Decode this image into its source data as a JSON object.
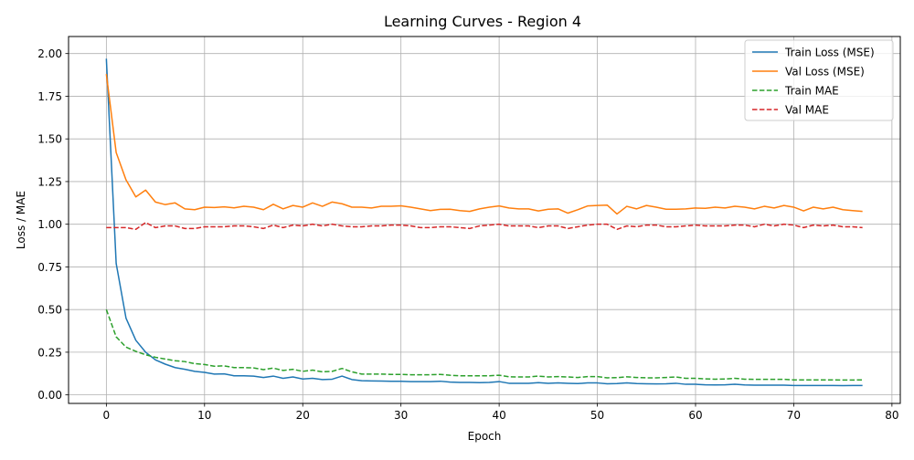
{
  "chart_data": {
    "type": "line",
    "title": "Learning Curves - Region 4",
    "xlabel": "Epoch",
    "ylabel": "Loss / MAE",
    "xlim": [
      -3.85,
      80.85
    ],
    "ylim": [
      -0.05,
      2.1
    ],
    "xticks": [
      0,
      10,
      20,
      30,
      40,
      50,
      60,
      70,
      80
    ],
    "yticks": [
      0.0,
      0.25,
      0.5,
      0.75,
      1.0,
      1.25,
      1.5,
      1.75,
      2.0
    ],
    "xtick_labels": [
      "0",
      "10",
      "20",
      "30",
      "40",
      "50",
      "60",
      "70",
      "80"
    ],
    "ytick_labels": [
      "0.00",
      "0.25",
      "0.50",
      "0.75",
      "1.00",
      "1.25",
      "1.50",
      "1.75",
      "2.00"
    ],
    "grid": true,
    "legend_position": "top-right",
    "x": [
      0,
      1,
      2,
      3,
      4,
      5,
      6,
      7,
      8,
      9,
      10,
      11,
      12,
      13,
      14,
      15,
      16,
      17,
      18,
      19,
      20,
      21,
      22,
      23,
      24,
      25,
      26,
      27,
      28,
      29,
      30,
      31,
      32,
      33,
      34,
      35,
      36,
      37,
      38,
      39,
      40,
      41,
      42,
      43,
      44,
      45,
      46,
      47,
      48,
      49,
      50,
      51,
      52,
      53,
      54,
      55,
      56,
      57,
      58,
      59,
      60,
      61,
      62,
      63,
      64,
      65,
      66,
      67,
      68,
      69,
      70,
      71,
      72,
      73,
      74,
      75,
      76,
      77
    ],
    "series": [
      {
        "name": "Train Loss (MSE)",
        "color": "#1f77b4",
        "dash": "solid",
        "values": [
          1.97,
          0.77,
          0.45,
          0.32,
          0.25,
          0.205,
          0.18,
          0.16,
          0.15,
          0.138,
          0.132,
          0.122,
          0.123,
          0.112,
          0.112,
          0.11,
          0.102,
          0.11,
          0.097,
          0.105,
          0.093,
          0.097,
          0.09,
          0.092,
          0.11,
          0.09,
          0.083,
          0.082,
          0.081,
          0.08,
          0.08,
          0.078,
          0.078,
          0.078,
          0.08,
          0.075,
          0.073,
          0.073,
          0.072,
          0.073,
          0.078,
          0.068,
          0.068,
          0.068,
          0.072,
          0.068,
          0.07,
          0.068,
          0.066,
          0.07,
          0.07,
          0.065,
          0.066,
          0.07,
          0.066,
          0.065,
          0.064,
          0.065,
          0.068,
          0.062,
          0.062,
          0.059,
          0.058,
          0.059,
          0.062,
          0.058,
          0.057,
          0.057,
          0.057,
          0.057,
          0.055,
          0.055,
          0.055,
          0.055,
          0.055,
          0.054,
          0.055,
          0.055
        ]
      },
      {
        "name": "Val Loss (MSE)",
        "color": "#ff7f0e",
        "dash": "solid",
        "values": [
          1.88,
          1.42,
          1.26,
          1.16,
          1.2,
          1.13,
          1.115,
          1.125,
          1.09,
          1.085,
          1.1,
          1.098,
          1.102,
          1.096,
          1.105,
          1.1,
          1.085,
          1.117,
          1.09,
          1.11,
          1.1,
          1.125,
          1.105,
          1.13,
          1.12,
          1.1,
          1.1,
          1.095,
          1.105,
          1.105,
          1.108,
          1.1,
          1.09,
          1.08,
          1.087,
          1.088,
          1.08,
          1.075,
          1.09,
          1.1,
          1.107,
          1.095,
          1.09,
          1.09,
          1.078,
          1.088,
          1.09,
          1.065,
          1.085,
          1.107,
          1.11,
          1.112,
          1.06,
          1.105,
          1.09,
          1.11,
          1.1,
          1.088,
          1.088,
          1.09,
          1.095,
          1.093,
          1.1,
          1.095,
          1.105,
          1.1,
          1.09,
          1.105,
          1.095,
          1.11,
          1.1,
          1.078,
          1.1,
          1.09,
          1.1,
          1.085,
          1.08,
          1.075
        ]
      },
      {
        "name": "Train MAE",
        "color": "#2ca02c",
        "dash": "dashed",
        "values": [
          0.5,
          0.34,
          0.28,
          0.255,
          0.235,
          0.22,
          0.21,
          0.2,
          0.195,
          0.183,
          0.178,
          0.168,
          0.17,
          0.16,
          0.16,
          0.158,
          0.148,
          0.157,
          0.143,
          0.15,
          0.138,
          0.145,
          0.135,
          0.138,
          0.155,
          0.135,
          0.122,
          0.122,
          0.122,
          0.12,
          0.12,
          0.118,
          0.118,
          0.118,
          0.12,
          0.115,
          0.112,
          0.112,
          0.112,
          0.112,
          0.115,
          0.106,
          0.105,
          0.105,
          0.11,
          0.105,
          0.107,
          0.105,
          0.102,
          0.107,
          0.107,
          0.1,
          0.101,
          0.106,
          0.102,
          0.1,
          0.1,
          0.102,
          0.105,
          0.097,
          0.097,
          0.094,
          0.092,
          0.093,
          0.097,
          0.092,
          0.091,
          0.091,
          0.091,
          0.091,
          0.088,
          0.088,
          0.088,
          0.088,
          0.088,
          0.087,
          0.087,
          0.088
        ]
      },
      {
        "name": "Val MAE",
        "color": "#d62728",
        "dash": "dashed",
        "values": [
          0.98,
          0.98,
          0.98,
          0.97,
          1.01,
          0.98,
          0.99,
          0.99,
          0.975,
          0.975,
          0.985,
          0.985,
          0.985,
          0.99,
          0.99,
          0.985,
          0.975,
          0.995,
          0.98,
          0.995,
          0.99,
          1.0,
          0.99,
          1.0,
          0.99,
          0.985,
          0.985,
          0.99,
          0.99,
          0.995,
          0.995,
          0.99,
          0.98,
          0.98,
          0.985,
          0.985,
          0.98,
          0.975,
          0.99,
          0.995,
          1.0,
          0.99,
          0.99,
          0.99,
          0.98,
          0.99,
          0.99,
          0.975,
          0.985,
          0.995,
          1.0,
          1.0,
          0.97,
          0.99,
          0.985,
          0.995,
          0.995,
          0.985,
          0.985,
          0.99,
          0.995,
          0.99,
          0.99,
          0.99,
          0.995,
          0.995,
          0.985,
          1.0,
          0.99,
          1.0,
          0.995,
          0.98,
          0.995,
          0.99,
          0.995,
          0.985,
          0.985,
          0.98
        ]
      }
    ]
  }
}
